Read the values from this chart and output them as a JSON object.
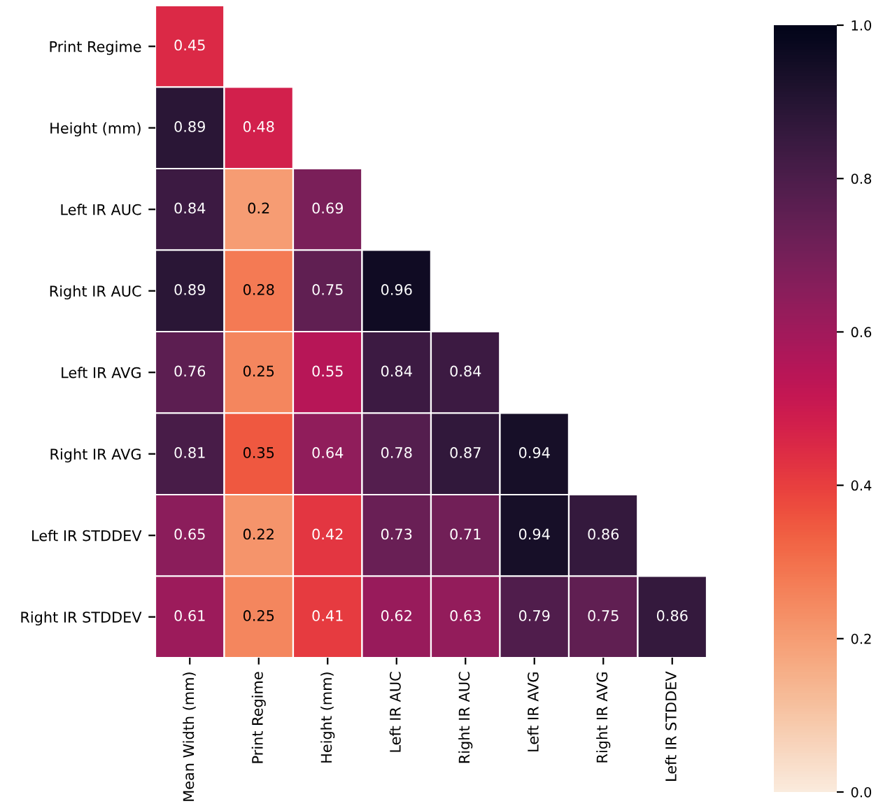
{
  "chart_data": {
    "type": "heatmap",
    "categories": [
      "Mean Width (mm)",
      "Print Regime",
      "Height (mm)",
      "Left IR AUC",
      "Right IR AUC",
      "Left IR AVG",
      "Right IR AVG",
      "Left IR STDDEV"
    ],
    "y_categories": [
      "Print Regime",
      "Height (mm)",
      "Left IR AUC",
      "Right IR AUC",
      "Left IR AVG",
      "Right IR AVG",
      "Left IR STDDEV",
      "Right IR STDDEV"
    ],
    "cells": [
      [
        0.45,
        null,
        null,
        null,
        null,
        null,
        null,
        null
      ],
      [
        0.89,
        0.48,
        null,
        null,
        null,
        null,
        null,
        null
      ],
      [
        0.84,
        0.2,
        0.69,
        null,
        null,
        null,
        null,
        null
      ],
      [
        0.89,
        0.28,
        0.75,
        0.96,
        null,
        null,
        null,
        null
      ],
      [
        0.76,
        0.25,
        0.55,
        0.84,
        0.84,
        null,
        null,
        null
      ],
      [
        0.81,
        0.35,
        0.64,
        0.78,
        0.87,
        0.94,
        null,
        null
      ],
      [
        0.65,
        0.22,
        0.42,
        0.73,
        0.71,
        0.94,
        0.86,
        null
      ],
      [
        0.61,
        0.25,
        0.41,
        0.62,
        0.63,
        0.79,
        0.75,
        0.86
      ]
    ],
    "data_labels": true,
    "clim": [
      0.0,
      1.0
    ],
    "cticks": [
      {
        "value": 0.0,
        "label": "0.0"
      },
      {
        "value": 0.2,
        "label": "0.2"
      },
      {
        "value": 0.4,
        "label": "0.4"
      },
      {
        "value": 0.6,
        "label": "0.6"
      },
      {
        "value": 0.8,
        "label": "0.8"
      },
      {
        "value": 1.0,
        "label": "1.0"
      }
    ]
  }
}
